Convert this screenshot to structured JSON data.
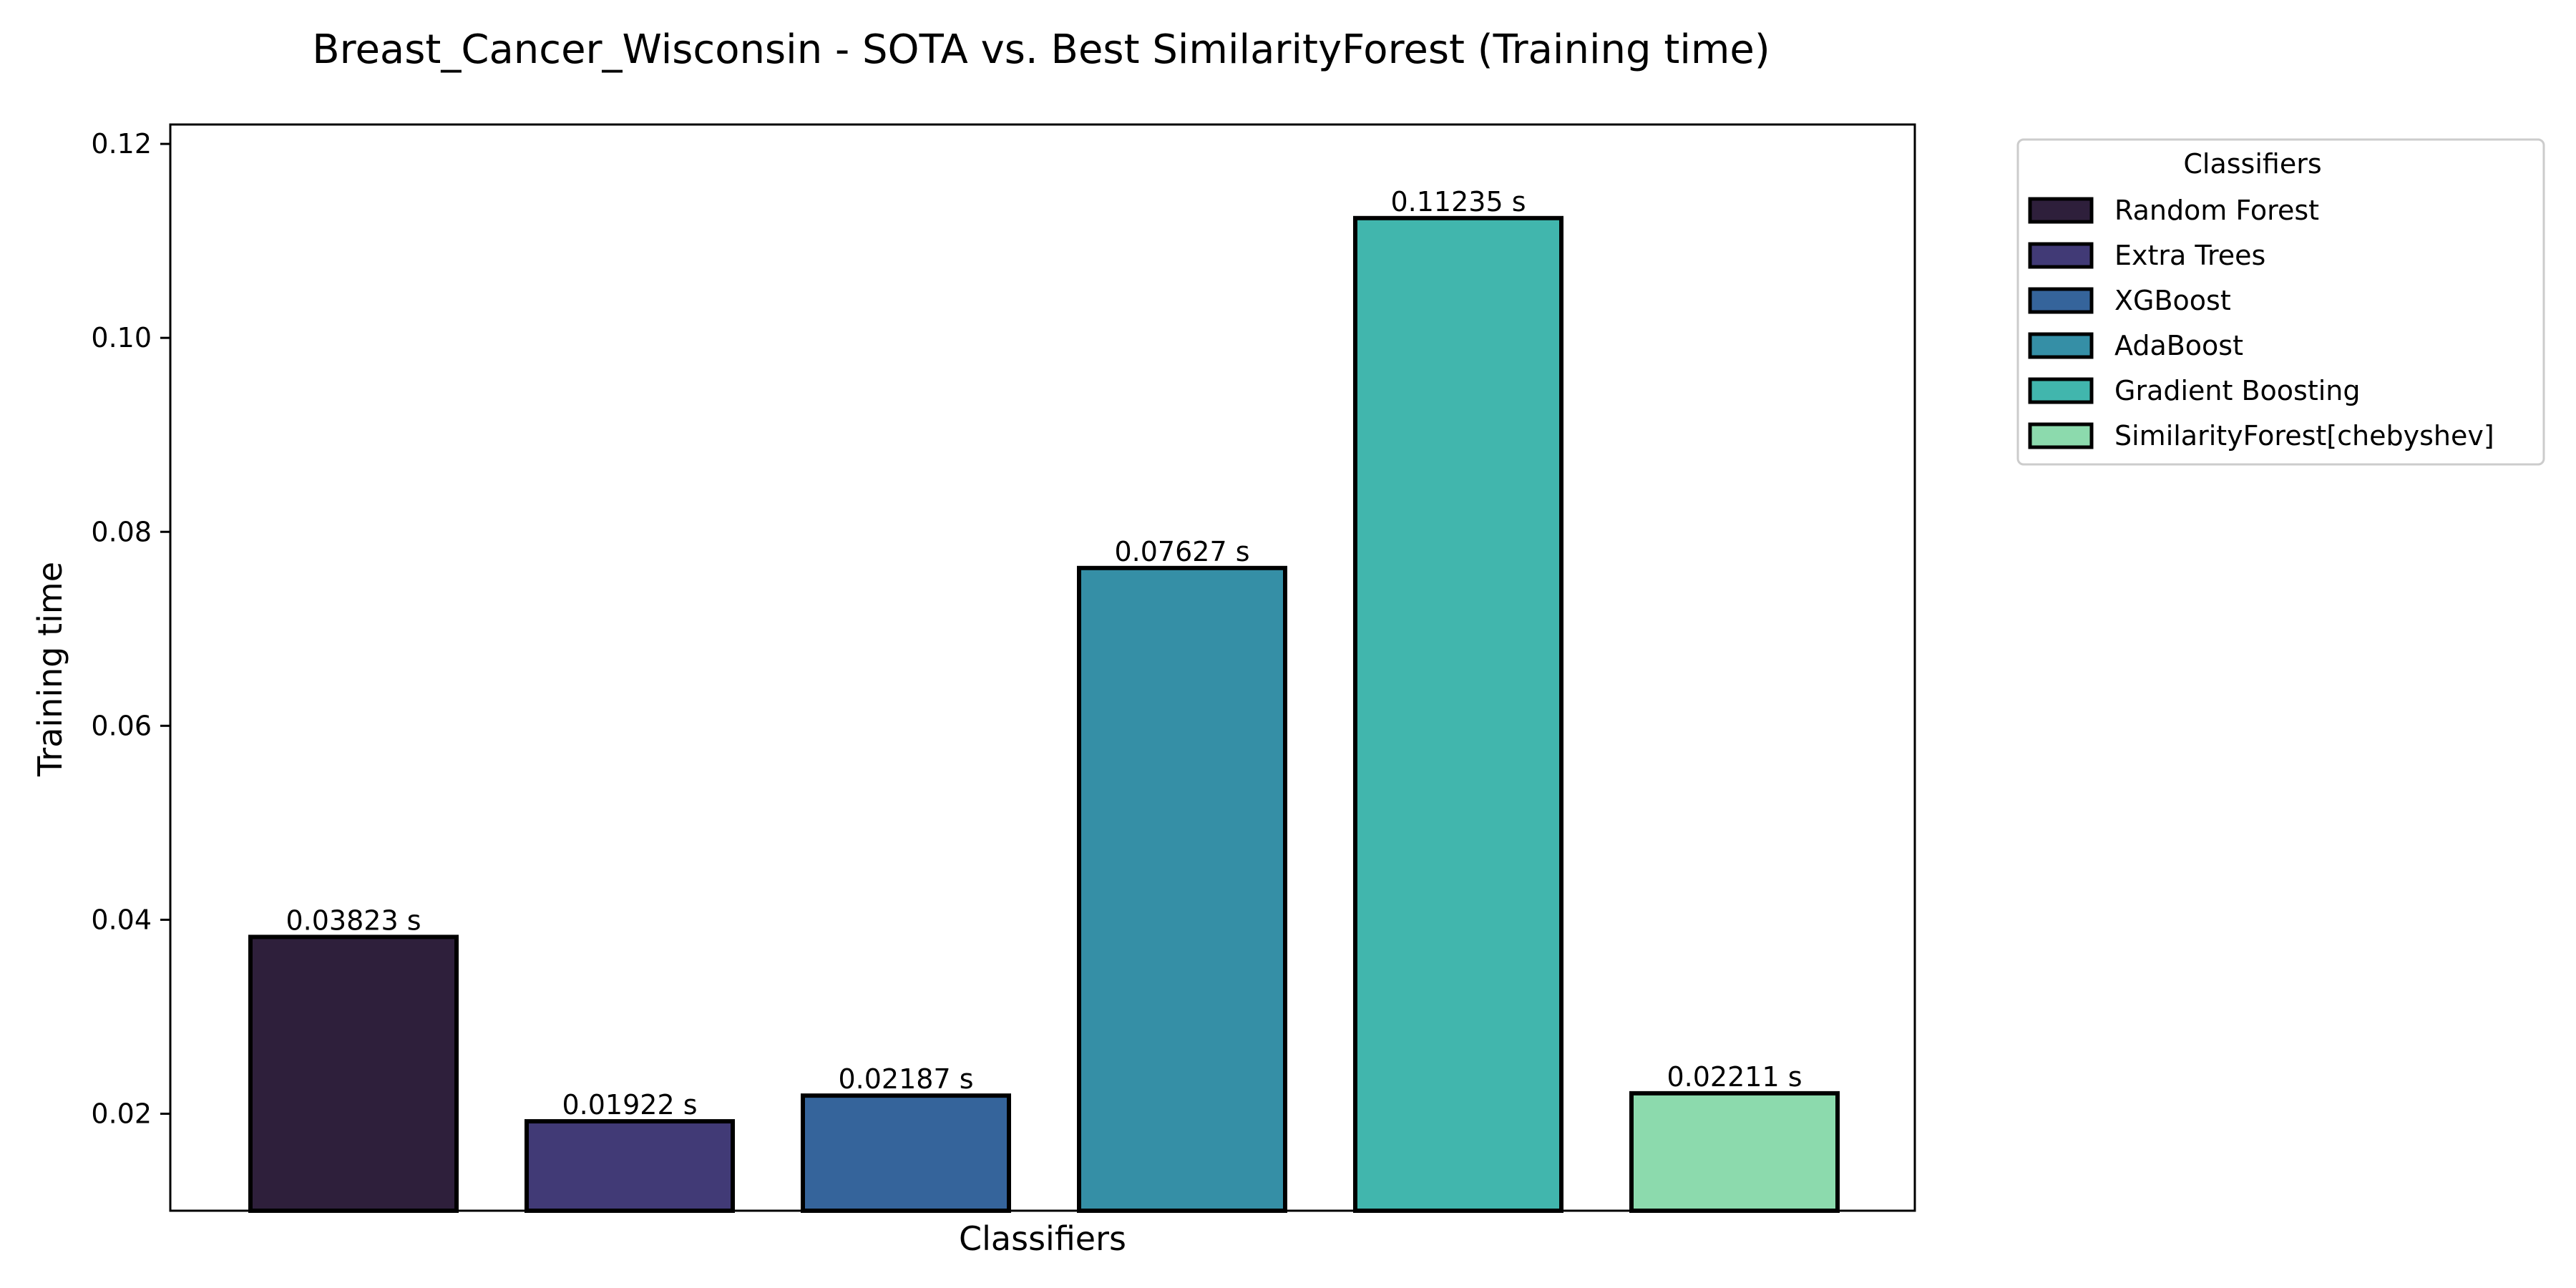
{
  "chart_data": {
    "type": "bar",
    "title": "Breast_Cancer_Wisconsin - SOTA vs. Best SimilarityForest (Training time)",
    "xlabel": "Classifiers",
    "ylabel": "Training time",
    "ylim": [
      0.01,
      0.122
    ],
    "yticks": [
      0.02,
      0.04,
      0.06,
      0.08,
      0.1,
      0.12
    ],
    "ytick_labels": [
      "0.02",
      "0.04",
      "0.06",
      "0.08",
      "0.10",
      "0.12"
    ],
    "grid": false,
    "legend_title": "Classifiers",
    "legend_position": "outside-top-right",
    "categories": [
      "Random Forest",
      "Extra Trees",
      "XGBoost",
      "AdaBoost",
      "Gradient Boosting",
      "SimilarityForest[chebyshev]"
    ],
    "values": [
      0.03823,
      0.01922,
      0.02187,
      0.07627,
      0.11235,
      0.02211
    ],
    "value_labels": [
      "0.03823 s",
      "0.01922 s",
      "0.02187 s",
      "0.07627 s",
      "0.11235 s",
      "0.02211 s"
    ],
    "colors": [
      "#2e1f3b",
      "#413a76",
      "#35649b",
      "#358fa6",
      "#41b6ad",
      "#8cdaad"
    ]
  }
}
